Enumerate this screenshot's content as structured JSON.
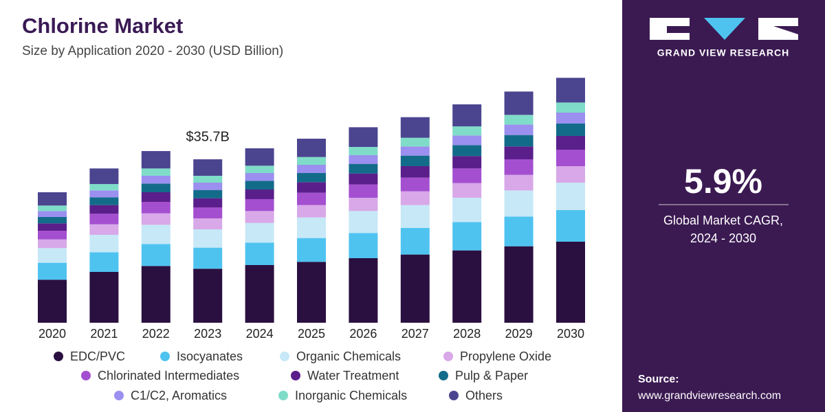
{
  "chart_data": {
    "type": "stacked_bar",
    "title": "Chlorine Market",
    "subtitle": "Size by Application 2020 - 2030 (USD Billion)",
    "categories": [
      "2020",
      "2021",
      "2022",
      "2023",
      "2024",
      "2025",
      "2026",
      "2027",
      "2028",
      "2029",
      "2030"
    ],
    "series": [
      {
        "name": "EDC/PVC",
        "color": "#2a1040",
        "values": [
          9.4,
          11.1,
          12.4,
          11.8,
          12.6,
          13.3,
          14.1,
          14.9,
          15.8,
          16.7,
          17.7
        ]
      },
      {
        "name": "Isocyanates",
        "color": "#4fc3f0",
        "values": [
          3.7,
          4.3,
          4.8,
          4.6,
          4.9,
          5.2,
          5.5,
          5.8,
          6.2,
          6.5,
          6.9
        ]
      },
      {
        "name": "Organic Chemicals",
        "color": "#c6e8f7",
        "values": [
          3.2,
          3.8,
          4.2,
          4.0,
          4.3,
          4.5,
          4.8,
          5.0,
          5.3,
          5.7,
          6.0
        ]
      },
      {
        "name": "Propylene Oxide",
        "color": "#d8a8e8",
        "values": [
          1.9,
          2.3,
          2.5,
          2.4,
          2.6,
          2.7,
          2.9,
          3.0,
          3.2,
          3.4,
          3.6
        ]
      },
      {
        "name": "Chlorinated Intermediates",
        "color": "#a44fd0",
        "values": [
          1.9,
          2.3,
          2.5,
          2.4,
          2.6,
          2.7,
          2.9,
          3.0,
          3.2,
          3.4,
          3.6
        ]
      },
      {
        "name": "Water Treatment",
        "color": "#5a1f8a",
        "values": [
          1.6,
          1.9,
          2.1,
          2.0,
          2.1,
          2.3,
          2.4,
          2.5,
          2.7,
          2.8,
          3.0
        ]
      },
      {
        "name": "Pulp & Paper",
        "color": "#136b8a",
        "values": [
          1.4,
          1.7,
          1.9,
          1.8,
          1.9,
          2.0,
          2.1,
          2.3,
          2.4,
          2.5,
          2.7
        ]
      },
      {
        "name": "C1/C2, Aromatics",
        "color": "#9b8fef",
        "values": [
          1.3,
          1.5,
          1.7,
          1.6,
          1.7,
          1.8,
          1.9,
          2.0,
          2.1,
          2.3,
          2.4
        ]
      },
      {
        "name": "Inorganic Chemicals",
        "color": "#7fdcc8",
        "values": [
          1.2,
          1.4,
          1.6,
          1.5,
          1.6,
          1.7,
          1.8,
          1.9,
          2.0,
          2.1,
          2.2
        ]
      },
      {
        "name": "Others",
        "color": "#4b4590",
        "values": [
          2.9,
          3.4,
          3.8,
          3.6,
          3.8,
          4.0,
          4.3,
          4.5,
          4.8,
          5.1,
          5.4
        ]
      }
    ],
    "annotations": [
      {
        "text": "$35.7B",
        "value": 35.7,
        "category": "2023"
      }
    ]
  },
  "sidebar": {
    "brand": "GRAND VIEW RESEARCH",
    "cagr": "5.9%",
    "cagr_label": "Global Market CAGR,",
    "cagr_period": "2024 - 2030",
    "source_label": "Source:",
    "source_url": "www.grandviewresearch.com"
  }
}
